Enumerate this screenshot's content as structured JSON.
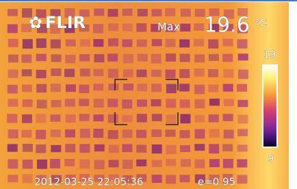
{
  "logo": "FLIR",
  "measurement": {
    "label": "Max",
    "value": "19.6",
    "unit": "°C"
  },
  "scale": {
    "max": "19",
    "min": "9"
  },
  "footer": {
    "timestamp": "2012-03-25 22:05:36",
    "emissivity": "e=0.95"
  }
}
